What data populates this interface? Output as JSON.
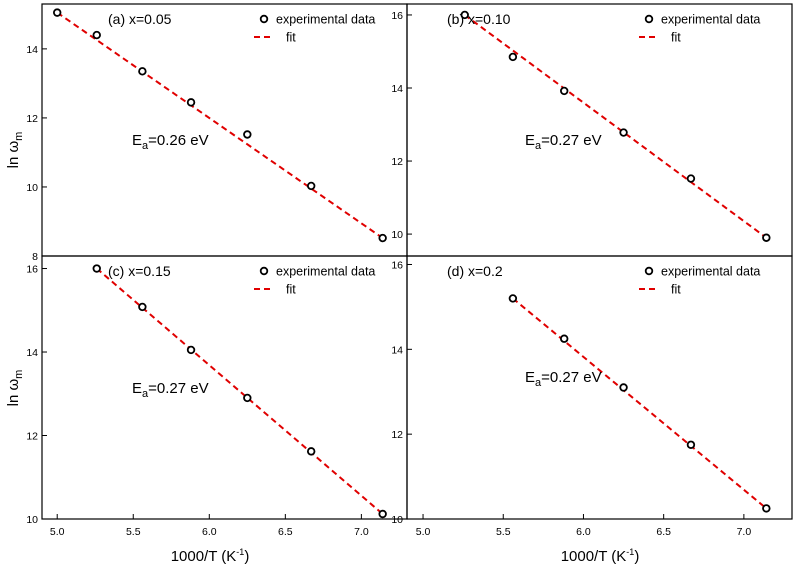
{
  "figure": {
    "xlabel_main": "1000/T (K",
    "xlabel_sup": "-1",
    "xlabel_end": ")",
    "ylabel_main": "ln ω",
    "ylabel_sub": "m"
  },
  "chart_data": [
    {
      "type": "scatter",
      "panel_label": "(a) x=0.05",
      "annotation": {
        "prefix": "E",
        "sub": "a",
        "text": "=0.26 eV"
      },
      "legend": {
        "points": "experimental data",
        "line": "fit"
      },
      "series": [
        {
          "name": "experimental data",
          "x": [
            5.0,
            5.26,
            5.56,
            5.88,
            6.25,
            6.67,
            7.14
          ],
          "y": [
            15.05,
            14.4,
            13.35,
            12.45,
            11.52,
            10.03,
            8.52
          ]
        },
        {
          "name": "fit",
          "x": [
            5.0,
            7.14
          ],
          "y": [
            15.05,
            8.52
          ]
        }
      ],
      "xlim": [
        4.9,
        7.3
      ],
      "ylim": [
        8,
        15.3
      ],
      "xticks": [],
      "yticks": [
        8,
        10,
        12,
        14
      ],
      "show_xticks": false,
      "show_ylabel": true
    },
    {
      "type": "scatter",
      "panel_label": "(b) x=0.10",
      "annotation": {
        "prefix": "E",
        "sub": "a",
        "text": "=0.27 eV"
      },
      "legend": {
        "points": "experimental data",
        "line": "fit"
      },
      "series": [
        {
          "name": "experimental data",
          "x": [
            5.26,
            5.56,
            5.88,
            6.25,
            6.67,
            7.14
          ],
          "y": [
            16.0,
            14.85,
            13.92,
            12.78,
            11.52,
            9.9
          ]
        },
        {
          "name": "fit",
          "x": [
            5.26,
            7.14
          ],
          "y": [
            16.0,
            9.9
          ]
        }
      ],
      "xlim": [
        4.9,
        7.3
      ],
      "ylim": [
        9.4,
        16.3
      ],
      "xticks": [],
      "yticks": [
        10,
        12,
        14,
        16
      ],
      "show_xticks": false,
      "show_ylabel": false
    },
    {
      "type": "scatter",
      "panel_label": "(c) x=0.15",
      "annotation": {
        "prefix": "E",
        "sub": "a",
        "text": "=0.27 eV"
      },
      "legend": {
        "points": "experimental data",
        "line": "fit"
      },
      "series": [
        {
          "name": "experimental data",
          "x": [
            5.26,
            5.56,
            5.88,
            6.25,
            6.67,
            7.14
          ],
          "y": [
            16.0,
            15.08,
            14.05,
            12.9,
            11.62,
            10.12
          ]
        },
        {
          "name": "fit",
          "x": [
            5.26,
            7.14
          ],
          "y": [
            16.0,
            10.12
          ]
        }
      ],
      "xlim": [
        4.9,
        7.3
      ],
      "ylim": [
        10,
        16.3
      ],
      "xticks": [
        5.0,
        5.5,
        6.0,
        6.5,
        7.0
      ],
      "yticks": [
        10,
        12,
        14,
        16
      ],
      "show_xticks": true,
      "show_ylabel": true
    },
    {
      "type": "scatter",
      "panel_label": "(d) x=0.2",
      "annotation": {
        "prefix": "E",
        "sub": "a",
        "text": "=0.27 eV"
      },
      "legend": {
        "points": "experimental data",
        "line": "fit"
      },
      "series": [
        {
          "name": "experimental data",
          "x": [
            5.56,
            5.88,
            6.25,
            6.67,
            7.14
          ],
          "y": [
            15.2,
            14.25,
            13.1,
            11.75,
            10.25
          ]
        },
        {
          "name": "fit",
          "x": [
            5.56,
            7.14
          ],
          "y": [
            15.2,
            10.25
          ]
        }
      ],
      "xlim": [
        4.9,
        7.3
      ],
      "ylim": [
        10,
        16.2
      ],
      "xticks": [
        5.0,
        5.5,
        6.0,
        6.5,
        7.0
      ],
      "yticks": [
        10,
        12,
        14,
        16
      ],
      "show_xticks": true,
      "show_ylabel": false
    }
  ]
}
